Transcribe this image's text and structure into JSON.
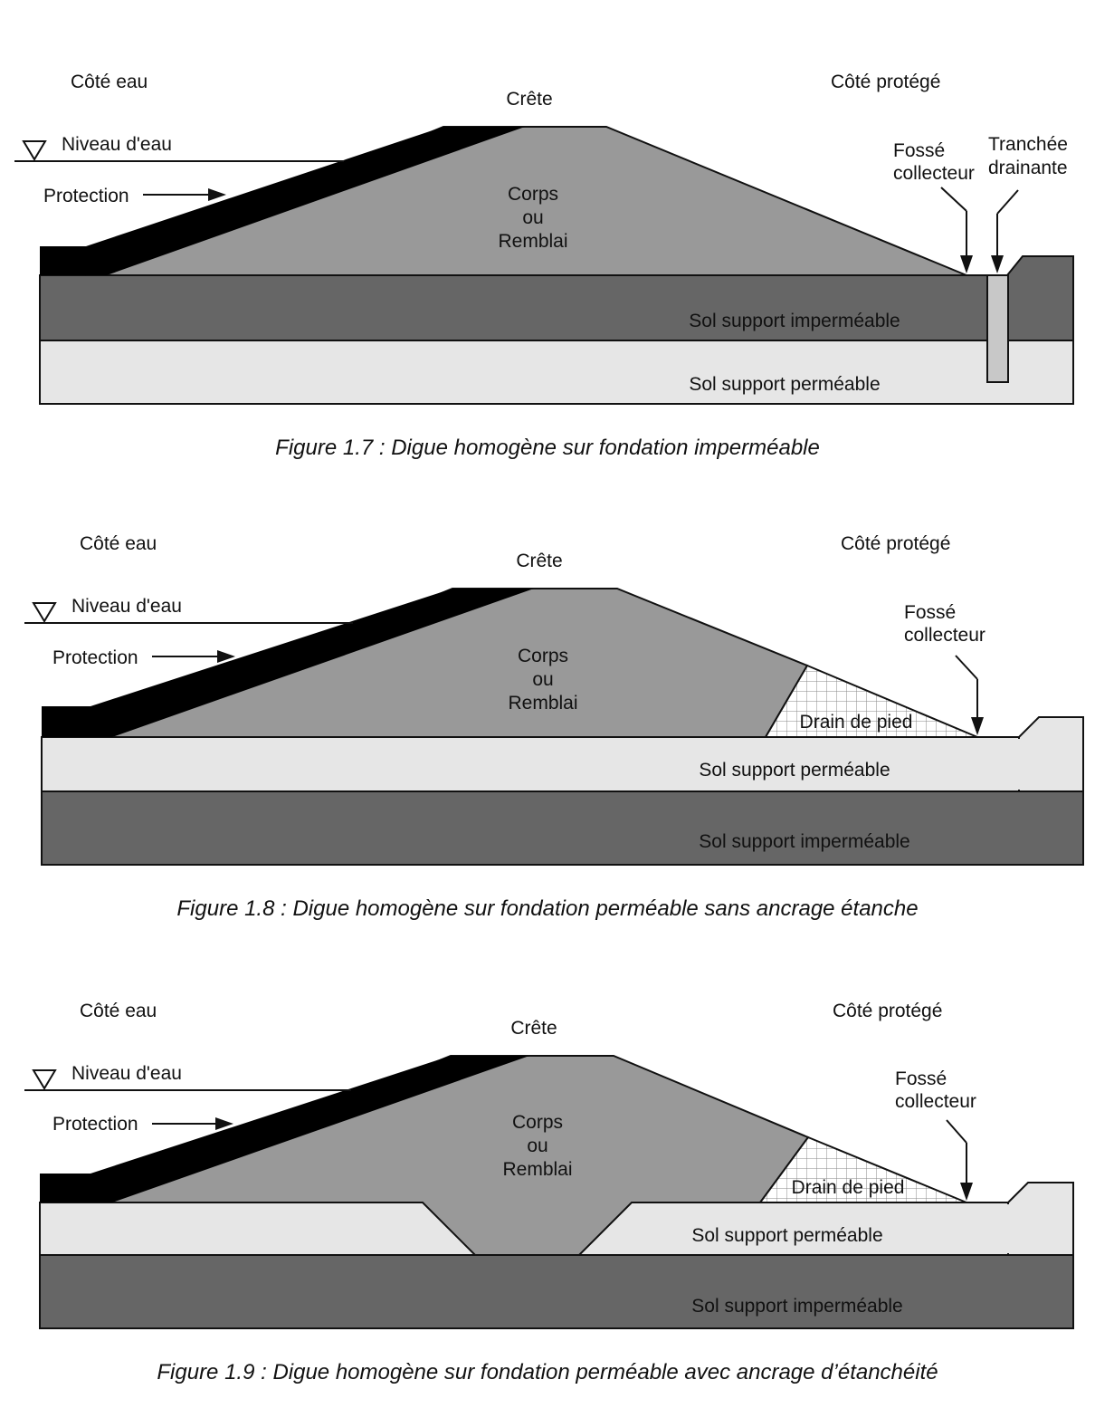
{
  "figures": [
    {
      "caption": "Figure 1.7 : Digue homogène sur fondation imperméable",
      "labels": {
        "water_side": "Côté eau",
        "protected_side": "Côté protégé",
        "crest": "Crête",
        "water_level": "Niveau d'eau",
        "protection": "Protection",
        "body_line1": "Corps",
        "body_line2": "ou",
        "body_line3": "Remblai",
        "ditch_line1": "Fossé",
        "ditch_line2": "collecteur",
        "trench_line1": "Tranchée",
        "trench_line2": "drainante",
        "layer_top": "Sol support imperméable",
        "layer_bottom": "Sol support perméable"
      }
    },
    {
      "caption": "Figure 1.8 : Digue homogène sur fondation perméable sans ancrage étanche",
      "labels": {
        "water_side": "Côté eau",
        "protected_side": "Côté protégé",
        "crest": "Crête",
        "water_level": "Niveau d'eau",
        "protection": "Protection",
        "body_line1": "Corps",
        "body_line2": "ou",
        "body_line3": "Remblai",
        "ditch_line1": "Fossé",
        "ditch_line2": "collecteur",
        "toe_drain": "Drain de pied",
        "layer_top": "Sol support perméable",
        "layer_bottom": "Sol support imperméable"
      }
    },
    {
      "caption": "Figure 1.9 : Digue homogène sur fondation perméable avec ancrage d’étanchéité",
      "labels": {
        "water_side": "Côté eau",
        "protected_side": "Côté protégé",
        "crest": "Crête",
        "water_level": "Niveau d'eau",
        "protection": "Protection",
        "body_line1": "Corps",
        "body_line2": "ou",
        "body_line3": "Remblai",
        "ditch_line1": "Fossé",
        "ditch_line2": "collecteur",
        "toe_drain": "Drain de pied",
        "layer_top": "Sol support perméable",
        "layer_bottom": "Sol support imperméable"
      }
    }
  ],
  "colors": {
    "embankment": "#999999",
    "impermeable_soil": "#666666",
    "permeable_soil": "#e6e6e6",
    "protection": "#000000",
    "trench": "#c8c8c8",
    "drain_grid": "#888888"
  }
}
